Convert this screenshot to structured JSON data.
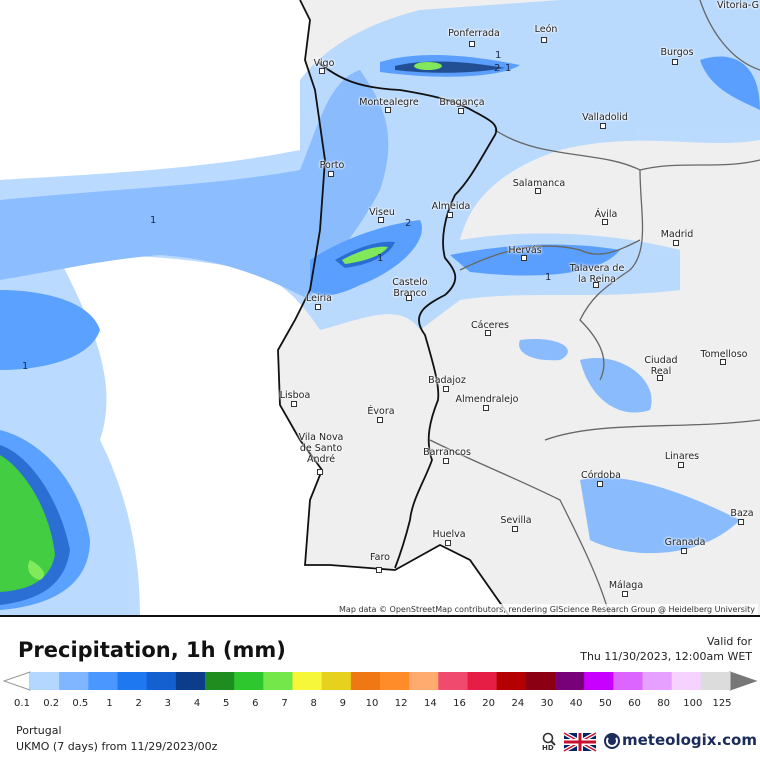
{
  "map": {
    "cities": [
      "Vitoria-G",
      "Ponferrada",
      "León",
      "Burgos",
      "Vigo",
      "Montealegre",
      "Bragança",
      "Valladolid",
      "Porto",
      "Salamanca",
      "Viseu",
      "Almeida",
      "Ávila",
      "Madrid",
      "Hervás",
      "Talavera de la Reina",
      "Castelo Branco",
      "Leiria",
      "Cáceres",
      "Ciudad Real",
      "Tomelloso",
      "Badajoz",
      "Almendralejo",
      "Lisboa",
      "Évora",
      "Vila Nova de Santo André",
      "Barrancos",
      "Linares",
      "Córdoba",
      "Baza",
      "Sevilla",
      "Granada",
      "Huelva",
      "Faro",
      "Málaga"
    ],
    "contour_labels": [
      1,
      1,
      2,
      1,
      1,
      2,
      1,
      1
    ],
    "attribution": "Map data © OpenStreetMap contributors, rendering GIScience Research Group @ Heidelberg University"
  },
  "legend": {
    "title": "Precipitation, 1h (mm)",
    "valid_label": "Valid for",
    "valid_time": "Thu 11/30/2023, 12:00am WET",
    "scale_values": [
      0.1,
      0.2,
      0.5,
      1,
      2,
      3,
      4,
      5,
      6,
      7,
      8,
      9,
      10,
      12,
      14,
      16,
      20,
      24,
      30,
      40,
      50,
      60,
      80,
      100,
      125
    ],
    "scale_colors": [
      "#b4d7ff",
      "#7fb6ff",
      "#4a97ff",
      "#1e78f0",
      "#1560d0",
      "#0c3d8a",
      "#1e8c1e",
      "#2ec82e",
      "#74e84a",
      "#f7f73a",
      "#e6d21e",
      "#f07814",
      "#ff8c28",
      "#ffaa6e",
      "#f04b6e",
      "#e61e46",
      "#b40000",
      "#8c0014",
      "#780078",
      "#c800ff",
      "#dc64ff",
      "#e6a0ff",
      "#f5d2ff",
      "#dcdcdc"
    ],
    "region": "Portugal",
    "model": "UKMO (7 days) from 11/29/2023/00z",
    "hd": "HD",
    "brand": "meteologix.com"
  }
}
